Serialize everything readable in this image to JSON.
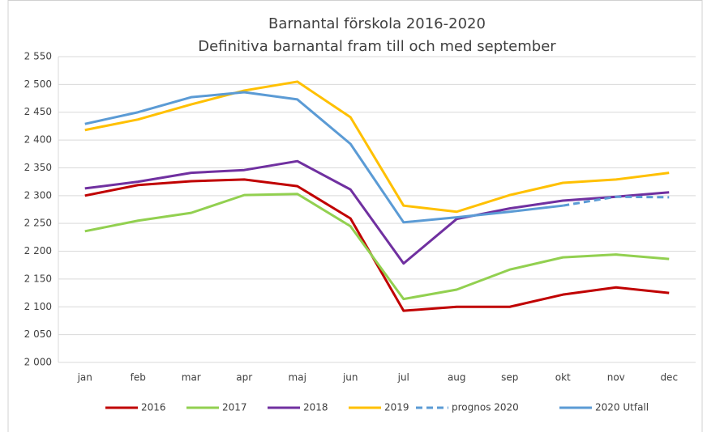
{
  "chart_data": {
    "type": "line",
    "title": "Barnantal förskola 2016-2020",
    "subtitle": "Definitiva barnantal fram till och med september",
    "categories": [
      "jan",
      "feb",
      "mar",
      "apr",
      "maj",
      "jun",
      "jul",
      "aug",
      "sep",
      "okt",
      "nov",
      "dec"
    ],
    "series": [
      {
        "name": "2016",
        "color": "#c00000",
        "values": [
          2300,
          2319,
          2326,
          2329,
          2317,
          2259,
          2093,
          2100,
          2100,
          2122,
          2135,
          2125
        ]
      },
      {
        "name": "2017",
        "color": "#92d050",
        "values": [
          2236,
          2255,
          2269,
          2301,
          2303,
          2245,
          2114,
          2131,
          2167,
          2189,
          2194,
          2186
        ]
      },
      {
        "name": "2018",
        "color": "#7030a0",
        "values": [
          2313,
          2325,
          2341,
          2346,
          2362,
          2311,
          2178,
          2258,
          2277,
          2291,
          2298,
          2306
        ]
      },
      {
        "name": "2019",
        "color": "#ffc000",
        "values": [
          2418,
          2437,
          2464,
          2489,
          2505,
          2441,
          2282,
          2271,
          2301,
          2323,
          2329,
          2341
        ]
      },
      {
        "name": "prognos 2020",
        "color": "#5b9bd5",
        "dashed": true,
        "values": [
          null,
          null,
          null,
          null,
          null,
          null,
          null,
          null,
          null,
          2282,
          2298,
          2297
        ]
      },
      {
        "name": "2020 Utfall",
        "color": "#5b9bd5",
        "values": [
          2429,
          2450,
          2477,
          2486,
          2473,
          2393,
          2252,
          2261,
          2271,
          2282,
          null,
          null
        ]
      }
    ],
    "ylim": [
      2000,
      2550
    ],
    "yticks": [
      {
        "value": 2000,
        "label": "2 000"
      },
      {
        "value": 2050,
        "label": "2 050"
      },
      {
        "value": 2100,
        "label": "2 100"
      },
      {
        "value": 2150,
        "label": "2 150"
      },
      {
        "value": 2200,
        "label": "2 200"
      },
      {
        "value": 2250,
        "label": "2 250"
      },
      {
        "value": 2300,
        "label": "2 300"
      },
      {
        "value": 2350,
        "label": "2 350"
      },
      {
        "value": 2400,
        "label": "2 400"
      },
      {
        "value": 2450,
        "label": "2 450"
      },
      {
        "value": 2500,
        "label": "2 500"
      },
      {
        "value": 2550,
        "label": "2 550"
      }
    ],
    "grid": true,
    "legend": "bottom"
  }
}
